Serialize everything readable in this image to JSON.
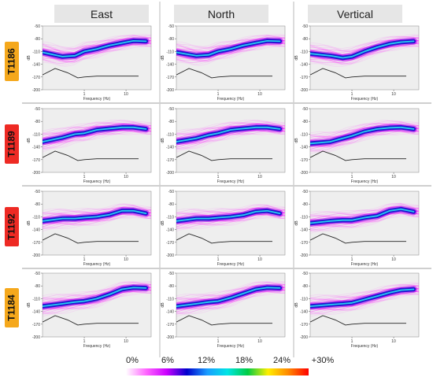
{
  "columns": [
    "East",
    "North",
    "Vertical"
  ],
  "rows": [
    {
      "label": "T1186",
      "color": "#f5a81c"
    },
    {
      "label": "T1189",
      "color": "#ee2a24"
    },
    {
      "label": "T1192",
      "color": "#ee2a24"
    },
    {
      "label": "T1184",
      "color": "#f5a81c"
    }
  ],
  "axes": {
    "xlabel": "Frequency (Hz)",
    "ylabel": "dB",
    "yticks": [
      "-50",
      "-80",
      "-110",
      "-140",
      "-170",
      "-200"
    ],
    "xticks": [
      "1",
      "10"
    ]
  },
  "colorbar": {
    "labels": [
      "0%",
      "6%",
      "12%",
      "18%",
      "24%",
      "+30%"
    ],
    "stops": [
      "#ffffff",
      "#ff66ff",
      "#cc00ff",
      "#0000cc",
      "#1a9cff",
      "#00e5e5",
      "#00cc44",
      "#ffee00",
      "#ff8800",
      "#ff0000"
    ]
  },
  "chart_data": {
    "type": "heatmap",
    "description_type": "power spectral density probability density function grid",
    "xlabel": "Frequency (Hz)",
    "ylabel": "dB",
    "x_scale": "log",
    "xlim": [
      0.1,
      40
    ],
    "ylim": [
      -200,
      -50
    ],
    "colorbar_range": [
      0,
      30
    ],
    "colorbar_unit": "%",
    "nlnm": {
      "x": [
        0.1,
        0.2,
        0.4,
        0.7,
        1,
        2,
        5,
        10,
        20
      ],
      "y": [
        -165,
        -150,
        -160,
        -172,
        -170,
        -168,
        -168,
        -168,
        -168
      ]
    },
    "panels": [
      {
        "station": "T1186",
        "component": "East",
        "mode_x": [
          0.1,
          0.3,
          0.6,
          1,
          2,
          4,
          8,
          15,
          30
        ],
        "mode_y": [
          -112,
          -122,
          -120,
          -110,
          -104,
          -96,
          -90,
          -85,
          -86
        ]
      },
      {
        "station": "T1186",
        "component": "North",
        "mode_x": [
          0.1,
          0.3,
          0.6,
          1,
          2,
          4,
          8,
          15,
          30
        ],
        "mode_y": [
          -112,
          -120,
          -118,
          -110,
          -104,
          -96,
          -90,
          -85,
          -86
        ]
      },
      {
        "station": "T1186",
        "component": "Vertical",
        "mode_x": [
          0.1,
          0.3,
          0.6,
          1,
          2,
          4,
          8,
          15,
          30
        ],
        "mode_y": [
          -115,
          -120,
          -125,
          -122,
          -110,
          -100,
          -92,
          -88,
          -86
        ]
      },
      {
        "station": "T1189",
        "component": "East",
        "mode_x": [
          0.1,
          0.3,
          0.6,
          1,
          2,
          4,
          8,
          15,
          30
        ],
        "mode_y": [
          -128,
          -118,
          -110,
          -108,
          -100,
          -97,
          -94,
          -94,
          -98
        ]
      },
      {
        "station": "T1189",
        "component": "North",
        "mode_x": [
          0.1,
          0.3,
          0.6,
          1,
          2,
          4,
          8,
          15,
          30
        ],
        "mode_y": [
          -128,
          -120,
          -112,
          -108,
          -100,
          -97,
          -94,
          -94,
          -98
        ]
      },
      {
        "station": "T1189",
        "component": "Vertical",
        "mode_x": [
          0.1,
          0.3,
          0.6,
          1,
          2,
          4,
          8,
          15,
          30
        ],
        "mode_y": [
          -132,
          -128,
          -120,
          -114,
          -104,
          -98,
          -95,
          -94,
          -98
        ]
      },
      {
        "station": "T1192",
        "component": "East",
        "mode_x": [
          0.1,
          0.3,
          0.6,
          1,
          2,
          4,
          8,
          15,
          30
        ],
        "mode_y": [
          -120,
          -114,
          -114,
          -112,
          -110,
          -105,
          -96,
          -96,
          -102
        ]
      },
      {
        "station": "T1192",
        "component": "North",
        "mode_x": [
          0.1,
          0.3,
          0.6,
          1,
          2,
          4,
          8,
          15,
          30
        ],
        "mode_y": [
          -120,
          -114,
          -114,
          -112,
          -110,
          -106,
          -98,
          -96,
          -102
        ]
      },
      {
        "station": "T1192",
        "component": "Vertical",
        "mode_x": [
          0.1,
          0.3,
          0.6,
          1,
          2,
          4,
          8,
          15,
          30
        ],
        "mode_y": [
          -125,
          -120,
          -118,
          -118,
          -112,
          -108,
          -96,
          -92,
          -98
        ]
      },
      {
        "station": "T1184",
        "component": "East",
        "mode_x": [
          0.1,
          0.3,
          0.6,
          1,
          2,
          4,
          8,
          15,
          30
        ],
        "mode_y": [
          -128,
          -122,
          -118,
          -116,
          -110,
          -100,
          -88,
          -84,
          -85
        ]
      },
      {
        "station": "T1184",
        "component": "North",
        "mode_x": [
          0.1,
          0.3,
          0.6,
          1,
          2,
          4,
          8,
          15,
          30
        ],
        "mode_y": [
          -128,
          -122,
          -118,
          -116,
          -108,
          -98,
          -88,
          -84,
          -85
        ]
      },
      {
        "station": "T1184",
        "component": "Vertical",
        "mode_x": [
          0.1,
          0.3,
          0.6,
          1,
          2,
          4,
          8,
          15,
          30
        ],
        "mode_y": [
          -128,
          -124,
          -122,
          -120,
          -112,
          -104,
          -96,
          -90,
          -88
        ]
      }
    ]
  }
}
